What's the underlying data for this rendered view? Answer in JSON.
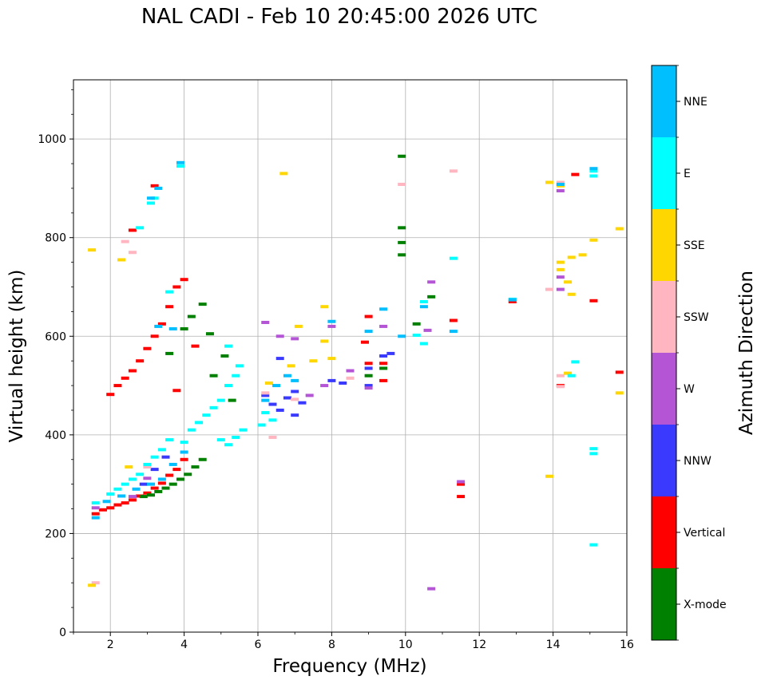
{
  "chart_data": {
    "type": "scatter",
    "title": "NAL CADI - Feb 10 20:45:00 2026 UTC",
    "xlabel": "Frequency (MHz)",
    "ylabel": "Virtual height (km)",
    "xlim": [
      1,
      16
    ],
    "ylim": [
      0,
      1120
    ],
    "xticks": [
      2,
      4,
      6,
      8,
      10,
      12,
      14,
      16
    ],
    "yticks": [
      0,
      200,
      400,
      600,
      800,
      1000
    ],
    "grid": true,
    "colorbar": {
      "label": "Azimuth Direction",
      "categories": [
        {
          "name": "X-mode",
          "color": "#008000"
        },
        {
          "name": "Vertical",
          "color": "#ff0000"
        },
        {
          "name": "NNW",
          "color": "#3a3aff"
        },
        {
          "name": "W",
          "color": "#b455d6"
        },
        {
          "name": "SSW",
          "color": "#ffb6c1"
        },
        {
          "name": "SSE",
          "color": "#ffd700"
        },
        {
          "name": "E",
          "color": "#00ffff"
        },
        {
          "name": "NNE",
          "color": "#00bfff"
        }
      ]
    },
    "series": [
      {
        "name": "Vertical",
        "points": [
          [
            1.6,
            240
          ],
          [
            1.8,
            248
          ],
          [
            2.0,
            252
          ],
          [
            2.2,
            258
          ],
          [
            2.4,
            262
          ],
          [
            2.6,
            268
          ],
          [
            2.8,
            276
          ],
          [
            3.0,
            282
          ],
          [
            3.2,
            292
          ],
          [
            3.4,
            302
          ],
          [
            3.6,
            318
          ],
          [
            3.8,
            330
          ],
          [
            4.0,
            350
          ],
          [
            2.0,
            482
          ],
          [
            2.2,
            500
          ],
          [
            2.4,
            515
          ],
          [
            2.6,
            530
          ],
          [
            2.8,
            550
          ],
          [
            3.0,
            575
          ],
          [
            3.2,
            600
          ],
          [
            3.4,
            625
          ],
          [
            3.6,
            660
          ],
          [
            3.8,
            700
          ],
          [
            4.0,
            715
          ],
          [
            3.2,
            905
          ],
          [
            2.6,
            815
          ],
          [
            4.3,
            580
          ],
          [
            3.8,
            490
          ],
          [
            9.0,
            640
          ],
          [
            9.0,
            545
          ],
          [
            9.4,
            510
          ],
          [
            9.4,
            545
          ],
          [
            11.5,
            300
          ],
          [
            11.5,
            275
          ],
          [
            11.3,
            632
          ],
          [
            12.9,
            670
          ],
          [
            14.6,
            928
          ],
          [
            14.2,
            500
          ],
          [
            15.1,
            672
          ],
          [
            15.8,
            527
          ],
          [
            8.9,
            588
          ]
        ]
      },
      {
        "name": "X-mode",
        "points": [
          [
            2.9,
            275
          ],
          [
            3.1,
            278
          ],
          [
            3.3,
            285
          ],
          [
            3.5,
            292
          ],
          [
            3.7,
            300
          ],
          [
            3.9,
            310
          ],
          [
            4.1,
            320
          ],
          [
            4.3,
            335
          ],
          [
            4.5,
            350
          ],
          [
            4.0,
            615
          ],
          [
            4.2,
            640
          ],
          [
            3.6,
            565
          ],
          [
            4.5,
            665
          ],
          [
            4.7,
            605
          ],
          [
            4.8,
            520
          ],
          [
            5.1,
            560
          ],
          [
            5.3,
            470
          ],
          [
            9.9,
            790
          ],
          [
            9.9,
            765
          ],
          [
            9.9,
            820
          ],
          [
            9.9,
            965
          ],
          [
            10.3,
            625
          ],
          [
            10.7,
            680
          ],
          [
            9.0,
            520
          ],
          [
            9.4,
            535
          ]
        ]
      },
      {
        "name": "NNW",
        "points": [
          [
            2.9,
            300
          ],
          [
            3.2,
            330
          ],
          [
            3.5,
            355
          ],
          [
            6.2,
            480
          ],
          [
            6.4,
            462
          ],
          [
            6.6,
            450
          ],
          [
            6.8,
            475
          ],
          [
            7.0,
            488
          ],
          [
            6.6,
            555
          ],
          [
            7.2,
            465
          ],
          [
            8.0,
            510
          ],
          [
            8.3,
            505
          ],
          [
            9.0,
            535
          ],
          [
            9.4,
            560
          ],
          [
            9.6,
            565
          ],
          [
            9.0,
            500
          ],
          [
            7.0,
            440
          ]
        ]
      },
      {
        "name": "W",
        "points": [
          [
            1.6,
            252
          ],
          [
            2.6,
            275
          ],
          [
            3.0,
            312
          ],
          [
            6.2,
            628
          ],
          [
            6.6,
            600
          ],
          [
            7.0,
            595
          ],
          [
            7.4,
            480
          ],
          [
            7.8,
            500
          ],
          [
            8.0,
            620
          ],
          [
            8.5,
            530
          ],
          [
            9.0,
            495
          ],
          [
            9.4,
            620
          ],
          [
            10.6,
            612
          ],
          [
            10.7,
            710
          ],
          [
            10.7,
            88
          ],
          [
            11.5,
            305
          ],
          [
            14.2,
            895
          ],
          [
            14.2,
            695
          ],
          [
            14.2,
            720
          ]
        ]
      },
      {
        "name": "SSW",
        "points": [
          [
            2.4,
            792
          ],
          [
            2.6,
            770
          ],
          [
            3.0,
            335
          ],
          [
            6.2,
            485
          ],
          [
            6.4,
            395
          ],
          [
            7.0,
            472
          ],
          [
            9.9,
            908
          ],
          [
            11.3,
            935
          ],
          [
            13.9,
            695
          ],
          [
            14.2,
            520
          ],
          [
            14.2,
            498
          ],
          [
            14.2,
            912
          ],
          [
            8.5,
            515
          ],
          [
            1.6,
            100
          ]
        ]
      },
      {
        "name": "SSE",
        "points": [
          [
            1.5,
            775
          ],
          [
            2.3,
            755
          ],
          [
            2.5,
            335
          ],
          [
            6.3,
            505
          ],
          [
            6.7,
            930
          ],
          [
            6.9,
            540
          ],
          [
            7.1,
            620
          ],
          [
            7.5,
            550
          ],
          [
            7.8,
            660
          ],
          [
            7.8,
            590
          ],
          [
            8.0,
            555
          ],
          [
            13.9,
            912
          ],
          [
            13.9,
            316
          ],
          [
            14.2,
            750
          ],
          [
            14.2,
            735
          ],
          [
            14.4,
            710
          ],
          [
            14.5,
            685
          ],
          [
            14.5,
            760
          ],
          [
            14.8,
            765
          ],
          [
            15.1,
            795
          ],
          [
            15.8,
            818
          ],
          [
            15.8,
            485
          ],
          [
            14.4,
            525
          ],
          [
            14.2,
            905
          ],
          [
            1.5,
            95
          ]
        ]
      },
      {
        "name": "E",
        "points": [
          [
            1.6,
            262
          ],
          [
            2.0,
            280
          ],
          [
            2.2,
            290
          ],
          [
            2.4,
            300
          ],
          [
            2.6,
            310
          ],
          [
            2.8,
            320
          ],
          [
            3.0,
            340
          ],
          [
            3.2,
            355
          ],
          [
            3.4,
            370
          ],
          [
            3.6,
            390
          ],
          [
            4.0,
            385
          ],
          [
            4.2,
            410
          ],
          [
            4.4,
            425
          ],
          [
            4.6,
            440
          ],
          [
            4.8,
            455
          ],
          [
            5.0,
            390
          ],
          [
            5.2,
            380
          ],
          [
            5.4,
            395
          ],
          [
            5.6,
            410
          ],
          [
            5.0,
            470
          ],
          [
            5.2,
            500
          ],
          [
            5.4,
            520
          ],
          [
            5.2,
            580
          ],
          [
            5.5,
            540
          ],
          [
            6.1,
            420
          ],
          [
            6.2,
            445
          ],
          [
            6.4,
            430
          ],
          [
            3.9,
            945
          ],
          [
            3.6,
            690
          ],
          [
            3.2,
            880
          ],
          [
            3.1,
            870
          ],
          [
            2.8,
            820
          ],
          [
            10.5,
            670
          ],
          [
            10.5,
            585
          ],
          [
            11.3,
            758
          ],
          [
            12.9,
            675
          ],
          [
            14.6,
            548
          ],
          [
            15.1,
            935
          ],
          [
            15.1,
            925
          ],
          [
            15.1,
            372
          ],
          [
            15.1,
            362
          ],
          [
            15.1,
            177
          ],
          [
            10.3,
            602
          ],
          [
            14.5,
            520
          ]
        ]
      },
      {
        "name": "NNE",
        "points": [
          [
            1.6,
            232
          ],
          [
            1.9,
            265
          ],
          [
            2.3,
            276
          ],
          [
            2.7,
            290
          ],
          [
            3.1,
            300
          ],
          [
            3.4,
            310
          ],
          [
            3.7,
            340
          ],
          [
            4.0,
            365
          ],
          [
            3.3,
            620
          ],
          [
            3.7,
            615
          ],
          [
            3.9,
            952
          ],
          [
            3.1,
            880
          ],
          [
            3.3,
            900
          ],
          [
            6.2,
            470
          ],
          [
            6.5,
            500
          ],
          [
            6.8,
            520
          ],
          [
            7.0,
            510
          ],
          [
            9.0,
            610
          ],
          [
            9.4,
            655
          ],
          [
            10.5,
            660
          ],
          [
            11.3,
            610
          ],
          [
            12.9,
            674
          ],
          [
            15.1,
            940
          ],
          [
            14.2,
            908
          ],
          [
            9.9,
            600
          ],
          [
            8.0,
            630
          ]
        ]
      }
    ]
  }
}
